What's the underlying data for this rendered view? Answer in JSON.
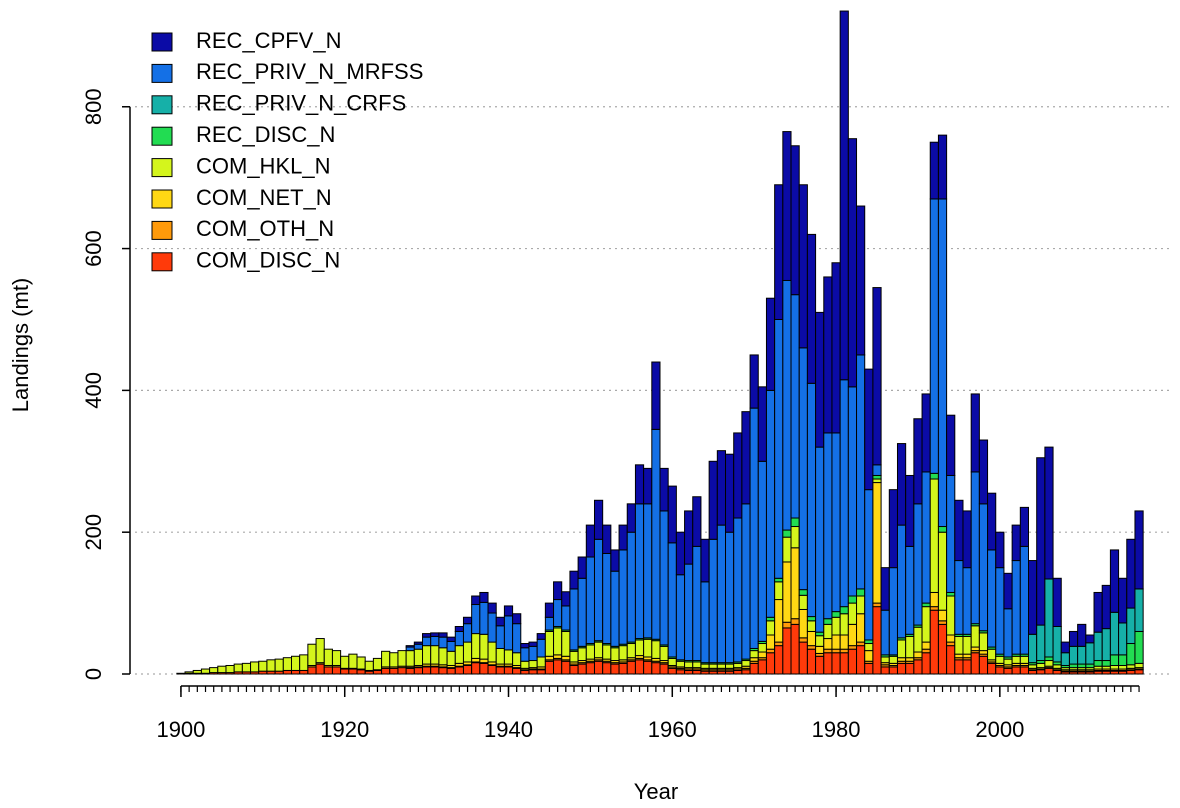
{
  "chart_data": {
    "type": "bar",
    "stacked": true,
    "x_label": "Year",
    "y_label": "Landings (mt)",
    "xlim": [
      1895,
      2022
    ],
    "ylim": [
      0,
      940
    ],
    "xticks": [
      1900,
      1920,
      1940,
      1960,
      1980,
      2000
    ],
    "yticks": [
      0,
      200,
      400,
      600,
      800
    ],
    "grid": true,
    "legend": "topleft",
    "x": [
      1900,
      1901,
      1902,
      1903,
      1904,
      1905,
      1906,
      1907,
      1908,
      1909,
      1910,
      1911,
      1912,
      1913,
      1914,
      1915,
      1916,
      1917,
      1918,
      1919,
      1920,
      1921,
      1922,
      1923,
      1924,
      1925,
      1926,
      1927,
      1928,
      1929,
      1930,
      1931,
      1932,
      1933,
      1934,
      1935,
      1936,
      1937,
      1938,
      1939,
      1940,
      1941,
      1942,
      1943,
      1944,
      1945,
      1946,
      1947,
      1948,
      1949,
      1950,
      1951,
      1952,
      1953,
      1954,
      1955,
      1956,
      1957,
      1958,
      1959,
      1960,
      1961,
      1962,
      1963,
      1964,
      1965,
      1966,
      1967,
      1968,
      1969,
      1970,
      1971,
      1972,
      1973,
      1974,
      1975,
      1976,
      1977,
      1978,
      1979,
      1980,
      1981,
      1982,
      1983,
      1984,
      1985,
      1986,
      1987,
      1988,
      1989,
      1990,
      1991,
      1992,
      1993,
      1994,
      1995,
      1996,
      1997,
      1998,
      1999,
      2000,
      2001,
      2002,
      2003,
      2004,
      2005,
      2006,
      2007,
      2008,
      2009,
      2010,
      2011,
      2012,
      2013,
      2014,
      2015,
      2016,
      2017
    ],
    "series": [
      {
        "name": "REC_CPFV_N",
        "color": "#0b0ba6",
        "values": [
          0,
          0,
          0,
          0,
          0,
          0,
          0,
          0,
          0,
          0,
          0,
          0,
          0,
          0,
          0,
          0,
          0,
          0,
          0,
          0,
          0,
          0,
          0,
          0,
          0,
          0,
          0,
          0,
          2,
          3,
          5,
          5,
          6,
          6,
          7,
          9,
          12,
          14,
          14,
          12,
          14,
          14,
          6,
          6,
          8,
          20,
          25,
          20,
          25,
          30,
          45,
          55,
          40,
          30,
          35,
          40,
          55,
          50,
          95,
          60,
          80,
          60,
          75,
          70,
          60,
          110,
          105,
          110,
          120,
          130,
          75,
          105,
          130,
          190,
          210,
          210,
          230,
          210,
          190,
          220,
          240,
          520,
          350,
          210,
          170,
          250,
          60,
          110,
          115,
          100,
          120,
          110,
          80,
          90,
          85,
          85,
          80,
          110,
          90,
          80,
          50,
          50,
          50,
          55,
          104,
          236,
          186,
          68,
          15,
          21,
          31,
          11,
          56,
          61,
          88,
          63,
          97,
          110
        ]
      },
      {
        "name": "REC_PRIV_N_MRFSS",
        "color": "#1470e6",
        "values": [
          0,
          0,
          0,
          0,
          0,
          0,
          0,
          0,
          0,
          0,
          0,
          0,
          0,
          0,
          0,
          0,
          0,
          0,
          0,
          0,
          0,
          0,
          0,
          0,
          0,
          0,
          0,
          0,
          5,
          7,
          12,
          13,
          15,
          14,
          20,
          26,
          41,
          45,
          41,
          32,
          48,
          41,
          19,
          20,
          25,
          18,
          38,
          34,
          86,
          96,
          122,
          143,
          127,
          106,
          133,
          155,
          190,
          189,
          296,
          189,
          161,
          120,
          136,
          161,
          114,
          174,
          194,
          184,
          203,
          219,
          339,
          254,
          320,
          365,
          352,
          315,
          341,
          329,
          261,
          262,
          252,
          320,
          295,
          330,
          212,
          15,
          63,
          123,
          159,
          124,
          171,
          185,
          387,
          462,
          165,
          104,
          94,
          214,
          179,
          137,
          122,
          68,
          132,
          152,
          0,
          0,
          0,
          0,
          0,
          0,
          0,
          0,
          0,
          0,
          0,
          0,
          0,
          0
        ]
      },
      {
        "name": "REC_PRIV_N_CRFS",
        "color": "#16b0a8",
        "values": [
          0,
          0,
          0,
          0,
          0,
          0,
          0,
          0,
          0,
          0,
          0,
          0,
          0,
          0,
          0,
          0,
          0,
          0,
          0,
          0,
          0,
          0,
          0,
          0,
          0,
          0,
          0,
          0,
          0,
          0,
          0,
          0,
          0,
          0,
          0,
          0,
          0,
          0,
          0,
          0,
          0,
          0,
          0,
          0,
          0,
          0,
          0,
          0,
          0,
          0,
          0,
          0,
          0,
          0,
          0,
          0,
          0,
          0,
          0,
          0,
          0,
          0,
          0,
          0,
          0,
          0,
          0,
          0,
          0,
          0,
          0,
          0,
          0,
          0,
          0,
          0,
          0,
          0,
          0,
          0,
          0,
          0,
          0,
          0,
          0,
          0,
          0,
          0,
          0,
          0,
          0,
          0,
          0,
          0,
          0,
          0,
          0,
          0,
          0,
          0,
          0,
          0,
          0,
          0,
          40,
          50,
          110,
          50,
          18,
          25,
          25,
          30,
          40,
          45,
          60,
          45,
          50,
          60
        ]
      },
      {
        "name": "REC_DISC_N",
        "color": "#22dc52",
        "values": [
          0,
          0,
          0,
          0,
          0,
          0,
          0,
          0,
          0,
          0,
          0,
          0,
          0,
          0,
          0,
          0,
          0,
          0,
          0,
          0,
          0,
          0,
          0,
          0,
          0,
          0,
          0,
          0,
          0,
          0,
          0,
          0,
          0,
          0,
          0,
          0,
          0,
          0,
          0,
          0,
          0,
          0,
          0,
          0,
          0,
          2,
          2,
          2,
          2,
          2,
          2,
          2,
          2,
          2,
          2,
          2,
          2,
          2,
          2,
          2,
          2,
          2,
          2,
          2,
          2,
          2,
          2,
          2,
          2,
          2,
          3,
          3,
          5,
          5,
          10,
          12,
          8,
          6,
          5,
          8,
          8,
          10,
          10,
          10,
          5,
          5,
          3,
          2,
          3,
          3,
          3,
          5,
          8,
          8,
          5,
          3,
          3,
          3,
          3,
          3,
          3,
          3,
          3,
          3,
          3,
          4,
          5,
          4,
          3,
          5,
          5,
          5,
          8,
          8,
          15,
          15,
          30,
          45
        ]
      },
      {
        "name": "COM_HKL_N",
        "color": "#d4f51c",
        "values": [
          1,
          2,
          4,
          6,
          7,
          9,
          10,
          11,
          12,
          14,
          14,
          16,
          17,
          18,
          20,
          22,
          30,
          34,
          23,
          21,
          17,
          20,
          17,
          13,
          16,
          22,
          20,
          22,
          22,
          23,
          26,
          26,
          24,
          20,
          25,
          28,
          35,
          35,
          28,
          22,
          20,
          18,
          10,
          10,
          14,
          35,
          38,
          35,
          15,
          18,
          20,
          22,
          20,
          18,
          20,
          20,
          22,
          25,
          25,
          20,
          10,
          8,
          8,
          8,
          6,
          6,
          6,
          6,
          6,
          8,
          10,
          12,
          20,
          25,
          35,
          30,
          20,
          15,
          15,
          20,
          25,
          30,
          30,
          25,
          10,
          5,
          8,
          10,
          25,
          30,
          35,
          50,
          160,
          110,
          55,
          25,
          25,
          30,
          25,
          15,
          10,
          8,
          10,
          10,
          5,
          6,
          8,
          5,
          3,
          3,
          3,
          3,
          4,
          4,
          5,
          5,
          5,
          6
        ]
      },
      {
        "name": "COM_NET_N",
        "color": "#ffd814",
        "values": [
          0,
          0,
          0,
          0,
          0,
          0,
          0,
          0,
          0,
          0,
          0,
          0,
          0,
          0,
          0,
          0,
          2,
          2,
          2,
          2,
          1,
          1,
          1,
          1,
          1,
          2,
          2,
          2,
          2,
          2,
          3,
          3,
          3,
          3,
          4,
          4,
          5,
          5,
          4,
          3,
          3,
          3,
          2,
          2,
          3,
          5,
          5,
          5,
          3,
          3,
          3,
          3,
          3,
          3,
          3,
          3,
          4,
          4,
          4,
          3,
          2,
          2,
          2,
          2,
          2,
          2,
          2,
          2,
          2,
          3,
          5,
          8,
          20,
          60,
          85,
          100,
          40,
          20,
          10,
          15,
          20,
          20,
          30,
          40,
          15,
          170,
          3,
          3,
          5,
          5,
          8,
          10,
          20,
          15,
          10,
          5,
          5,
          5,
          5,
          3,
          3,
          3,
          3,
          3,
          2,
          2,
          2,
          2,
          2,
          2,
          2,
          2,
          2,
          2,
          2,
          2,
          2,
          2
        ]
      },
      {
        "name": "COM_OTH_N",
        "color": "#ff9a0a",
        "values": [
          0,
          0,
          0,
          0,
          0,
          0,
          0,
          0,
          0,
          0,
          0,
          0,
          0,
          0,
          0,
          0,
          0,
          0,
          0,
          0,
          0,
          0,
          0,
          0,
          0,
          0,
          0,
          0,
          1,
          1,
          1,
          1,
          1,
          1,
          1,
          1,
          1,
          1,
          1,
          1,
          1,
          1,
          1,
          1,
          1,
          2,
          2,
          2,
          2,
          2,
          2,
          2,
          2,
          2,
          2,
          2,
          2,
          2,
          2,
          2,
          2,
          2,
          2,
          2,
          2,
          2,
          2,
          2,
          2,
          2,
          3,
          3,
          5,
          5,
          8,
          8,
          6,
          5,
          4,
          5,
          5,
          5,
          5,
          5,
          3,
          5,
          3,
          2,
          3,
          3,
          3,
          5,
          5,
          5,
          5,
          3,
          3,
          3,
          3,
          2,
          2,
          2,
          2,
          2,
          1,
          1,
          1,
          1,
          1,
          1,
          1,
          1,
          1,
          1,
          1,
          1,
          1,
          1
        ]
      },
      {
        "name": "COM_DISC_N",
        "color": "#ff3a0a",
        "values": [
          0,
          1,
          1,
          1,
          2,
          2,
          2,
          3,
          3,
          3,
          4,
          4,
          4,
          5,
          5,
          5,
          10,
          14,
          10,
          10,
          7,
          7,
          6,
          4,
          5,
          8,
          8,
          9,
          8,
          9,
          10,
          10,
          9,
          8,
          10,
          12,
          16,
          15,
          12,
          10,
          10,
          8,
          5,
          6,
          6,
          18,
          20,
          18,
          12,
          14,
          16,
          18,
          16,
          14,
          15,
          18,
          20,
          18,
          16,
          14,
          8,
          6,
          5,
          5,
          4,
          4,
          4,
          4,
          5,
          6,
          15,
          20,
          30,
          40,
          65,
          70,
          45,
          35,
          25,
          30,
          30,
          30,
          35,
          40,
          15,
          95,
          10,
          10,
          15,
          15,
          20,
          30,
          90,
          70,
          40,
          20,
          20,
          30,
          25,
          15,
          10,
          8,
          10,
          10,
          5,
          6,
          8,
          5,
          3,
          3,
          3,
          3,
          4,
          4,
          4,
          4,
          5,
          6
        ]
      }
    ]
  }
}
